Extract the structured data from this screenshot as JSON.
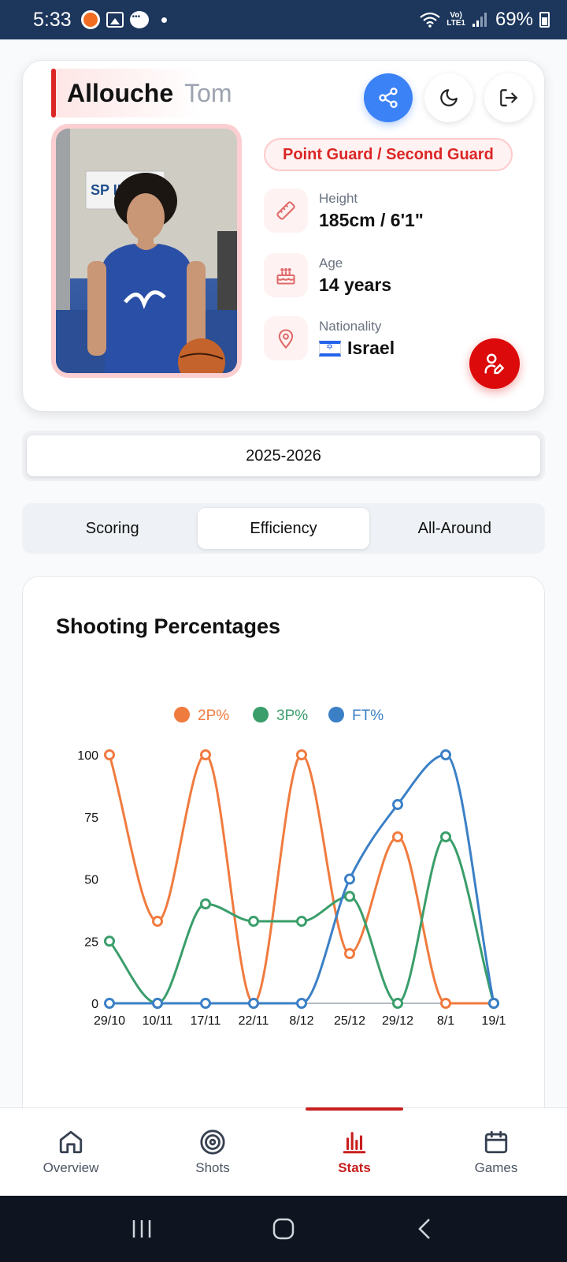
{
  "status_bar": {
    "time": "5:33",
    "network_top": "Vo)",
    "network_bottom": "LTE1",
    "battery": "69%"
  },
  "profile": {
    "last_name": "Allouche",
    "first_name": "Tom",
    "position": "Point Guard / Second Guard",
    "height_label": "Height",
    "height_value": "185cm / 6'1\"",
    "age_label": "Age",
    "age_value": "14 years",
    "nationality_label": "Nationality",
    "nationality_value": "Israel",
    "photo_sign_text": "SP IND"
  },
  "season": {
    "selected": "2025-2026"
  },
  "tabs": [
    {
      "label": "Scoring",
      "active": false
    },
    {
      "label": "Efficiency",
      "active": true
    },
    {
      "label": "All-Around",
      "active": false
    }
  ],
  "chart_data": {
    "type": "line",
    "title": "Shooting Percentages",
    "categories": [
      "29/10",
      "10/11",
      "17/11",
      "22/11",
      "8/12",
      "25/12",
      "29/12",
      "8/1",
      "19/1"
    ],
    "series": [
      {
        "name": "2P%",
        "color": "#f07b3f",
        "values": [
          100,
          33,
          100,
          0,
          100,
          20,
          67,
          0,
          0
        ]
      },
      {
        "name": "3P%",
        "color": "#3a9e6b",
        "values": [
          25,
          0,
          40,
          33,
          33,
          43,
          0,
          67,
          0
        ]
      },
      {
        "name": "FT%",
        "color": "#3b80c6",
        "values": [
          0,
          0,
          0,
          0,
          0,
          50,
          80,
          100,
          0
        ]
      }
    ],
    "yticks": [
      0,
      25,
      50,
      75,
      100
    ],
    "ylim": [
      0,
      100
    ],
    "legend": "top",
    "grid": false
  },
  "bottom_nav": [
    {
      "label": "Overview",
      "icon": "home-icon",
      "active": false
    },
    {
      "label": "Shots",
      "icon": "target-icon",
      "active": false
    },
    {
      "label": "Stats",
      "icon": "bar-chart-icon",
      "active": true
    },
    {
      "label": "Games",
      "icon": "calendar-icon",
      "active": false
    }
  ]
}
